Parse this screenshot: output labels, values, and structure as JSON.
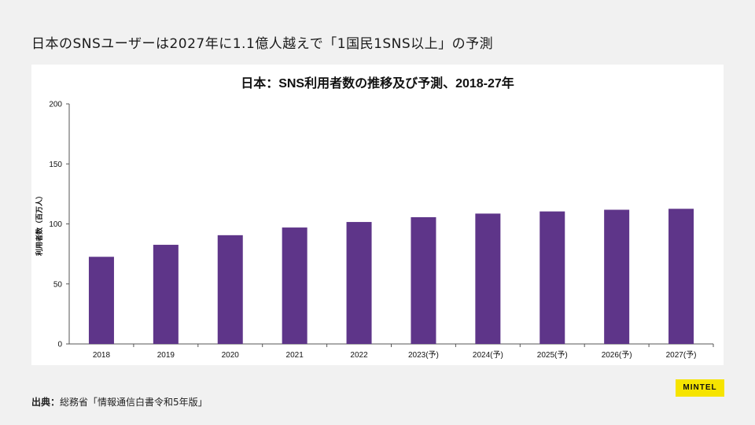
{
  "slide": {
    "title": "日本のSNSユーザーは2027年に1.1億人越えで「1国民1SNS以上」の予測",
    "source_label": "出典：",
    "source_text": "総務省「情報通信白書令和5年版」",
    "logo_text": "MINTEL"
  },
  "colors": {
    "bar": "#5e3589",
    "background": "#f1f1f1",
    "logo": "#f6e400"
  },
  "chart_data": {
    "type": "bar",
    "title": "日本：SNS利用者数の推移及び予測、2018-27年",
    "xlabel": "",
    "ylabel": "利用者数（百万人）",
    "categories": [
      "2018",
      "2019",
      "2020",
      "2021",
      "2022",
      "2023(予)",
      "2024(予)",
      "2025(予)",
      "2026(予)",
      "2027(予)"
    ],
    "values": [
      72.6,
      82.6,
      90.6,
      97.0,
      101.6,
      105.6,
      108.6,
      110.4,
      111.8,
      112.6
    ],
    "ylim": [
      0,
      200
    ],
    "yticks": [
      0,
      50,
      100,
      150,
      200
    ],
    "grid": false,
    "legend": "none"
  }
}
